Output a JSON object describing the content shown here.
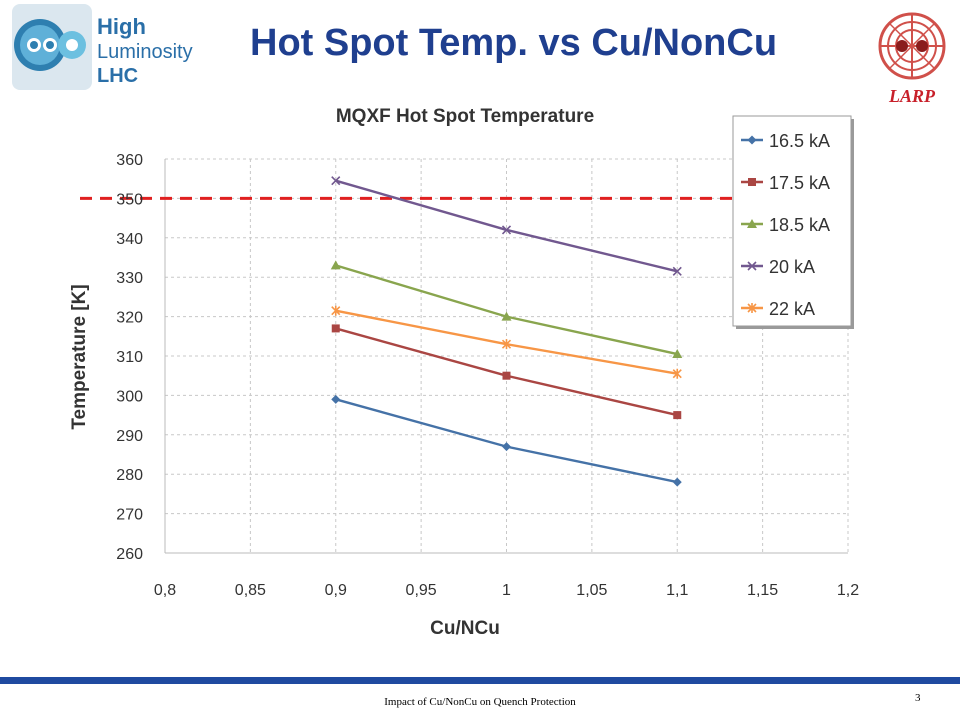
{
  "slide": {
    "title": "Hot Spot Temp. vs Cu/NonCu",
    "footer": "Impact of Cu/NonCu on Quench Protection",
    "page_number": "3",
    "logo_left": {
      "line1": "High",
      "line2": "Luminosity",
      "line3": "LHC"
    },
    "logo_right": {
      "text": "LARP"
    }
  },
  "chart_data": {
    "type": "line",
    "title": "MQXF Hot Spot Temperature",
    "xlabel": "Cu/NCu",
    "ylabel": "Temperature [K]",
    "xlim": [
      0.8,
      1.2
    ],
    "ylim": [
      260,
      360
    ],
    "xticks": [
      "0,8",
      "0,85",
      "0,9",
      "0,95",
      "1",
      "1,05",
      "1,1",
      "1,15",
      "1,2"
    ],
    "yticks": [
      "360",
      "350",
      "340",
      "330",
      "320",
      "310",
      "300",
      "290",
      "280",
      "270",
      "260"
    ],
    "grid": true,
    "legend_position": "top-right",
    "x": [
      0.9,
      1.0,
      1.1
    ],
    "threshold": {
      "value": 350,
      "color": "#e02020",
      "style": "dashed"
    },
    "series": [
      {
        "name": "16.5 kA",
        "values": [
          299,
          287,
          278
        ],
        "color": "#4572a7",
        "marker": "diamond"
      },
      {
        "name": "17.5 kA",
        "values": [
          317,
          305,
          295
        ],
        "color": "#aa4643",
        "marker": "square"
      },
      {
        "name": "18.5 kA",
        "values": [
          333,
          320,
          310.5
        ],
        "color": "#89a54e",
        "marker": "triangle"
      },
      {
        "name": "20 kA",
        "values": [
          354.5,
          342,
          331.5
        ],
        "color": "#71588f",
        "marker": "x"
      },
      {
        "name": "22 kA",
        "values": [
          321.5,
          313,
          305.5
        ],
        "color": "#f79646",
        "marker": "star"
      }
    ]
  }
}
